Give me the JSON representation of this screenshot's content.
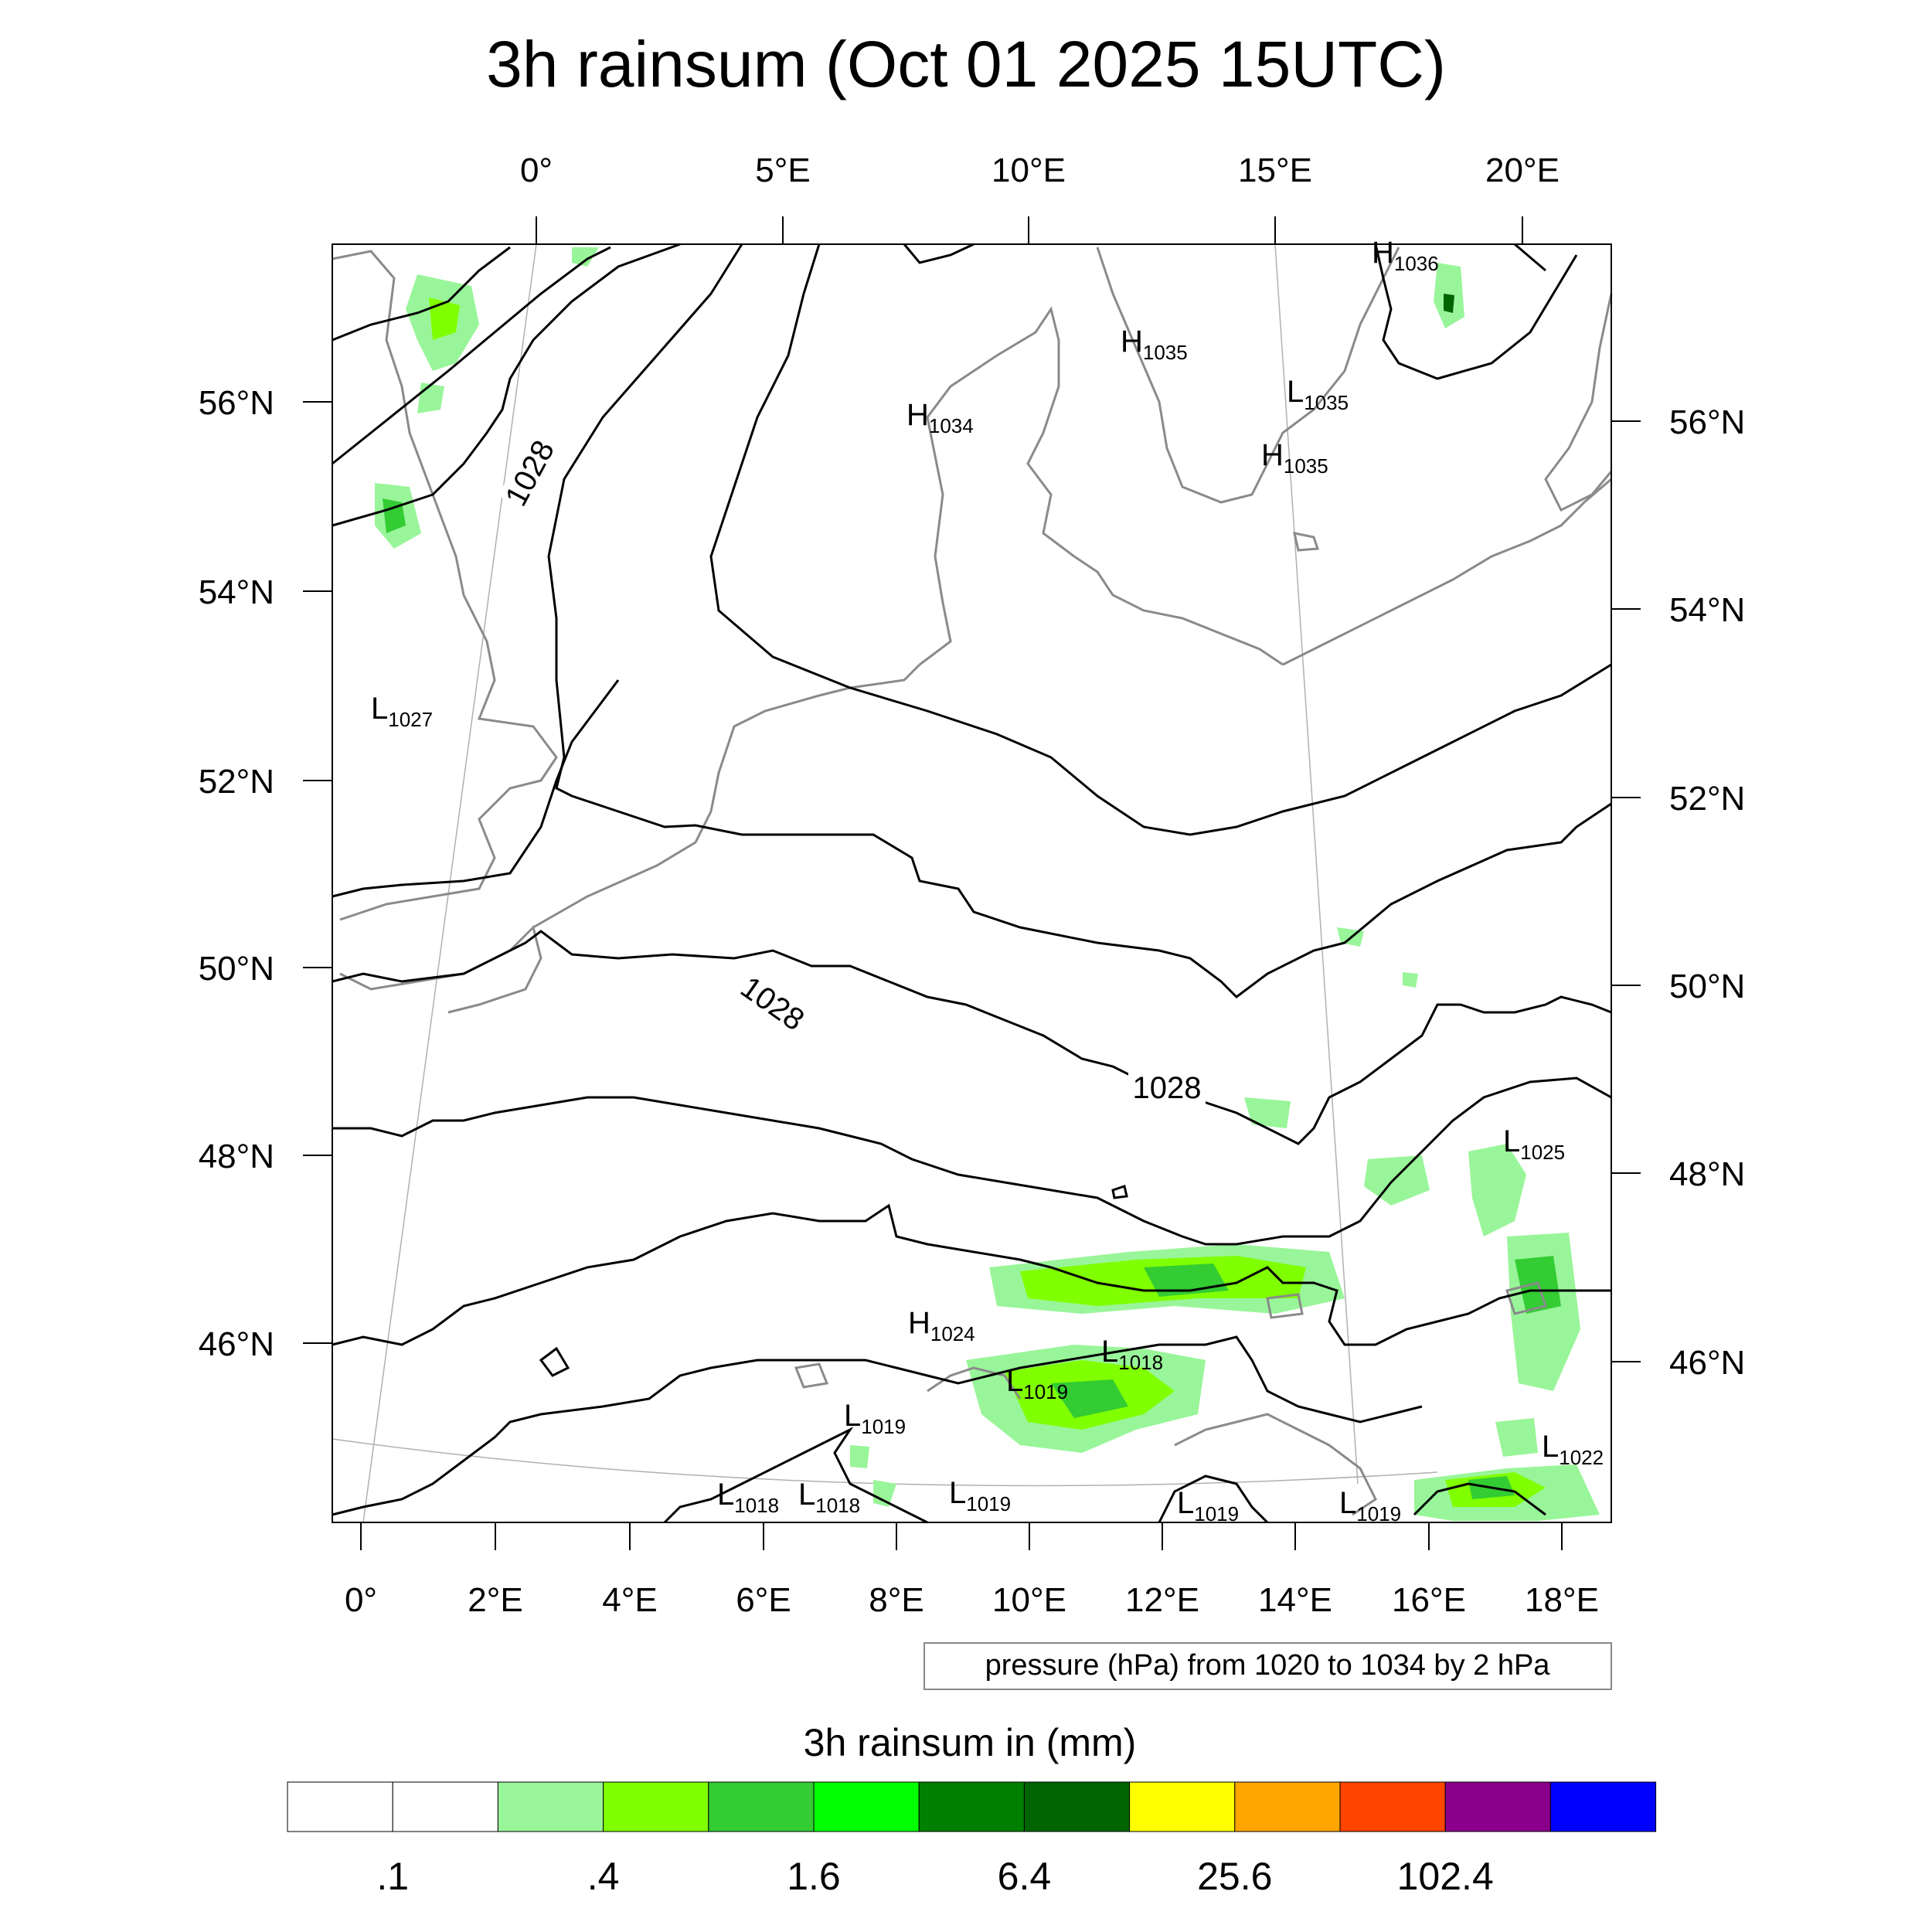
{
  "title": "3h rainsum (Oct 01 2025 15UTC)",
  "top_lon_labels": [
    "0°",
    "5°E",
    "10°E",
    "15°E",
    "20°E"
  ],
  "bottom_lon_labels": [
    "0°",
    "2°E",
    "4°E",
    "6°E",
    "8°E",
    "10°E",
    "12°E",
    "14°E",
    "16°E",
    "18°E"
  ],
  "left_lat_labels": [
    "56°N",
    "54°N",
    "52°N",
    "50°N",
    "48°N",
    "46°N"
  ],
  "right_lat_labels": [
    "56°N",
    "54°N",
    "52°N",
    "50°N",
    "48°N",
    "46°N"
  ],
  "contour_labels": [
    "1028",
    "1028",
    "1028"
  ],
  "pressure_centers": [
    {
      "type": "H",
      "value": "1036"
    },
    {
      "type": "H",
      "value": "1035"
    },
    {
      "type": "L",
      "value": "1035"
    },
    {
      "type": "H",
      "value": "1034"
    },
    {
      "type": "H",
      "value": "1035"
    },
    {
      "type": "L",
      "value": "1027"
    },
    {
      "type": "L",
      "value": "1025"
    },
    {
      "type": "H",
      "value": "1024"
    },
    {
      "type": "L",
      "value": "1018"
    },
    {
      "type": "L",
      "value": "1019"
    },
    {
      "type": "L",
      "value": "1019"
    },
    {
      "type": "L",
      "value": "1022"
    },
    {
      "type": "L",
      "value": "1018"
    },
    {
      "type": "L",
      "value": "1018"
    },
    {
      "type": "L",
      "value": "1019"
    },
    {
      "type": "L",
      "value": "1019"
    },
    {
      "type": "L",
      "value": "1019"
    }
  ],
  "info_box": "pressure (hPa) from 1020 to 1034 by 2 hPa",
  "colorbar": {
    "title": "3h rainsum in (mm)",
    "colors": [
      "#ffffff",
      "#ffffff",
      "#99f599",
      "#80ff00",
      "#33cc33",
      "#00ff00",
      "#008000",
      "#006400",
      "#ffff00",
      "#ffa500",
      "#ff4500",
      "#8b008b",
      "#0000ff"
    ],
    "tick_labels": [
      ".1",
      ".4",
      "1.6",
      "6.4",
      "25.6",
      "102.4"
    ]
  },
  "colors": {
    "contour": "#000000",
    "coastline": "#8a8a8a",
    "rain_light": "#99f599",
    "rain_mid": "#80ff00",
    "rain_heavy": "#33cc33"
  }
}
